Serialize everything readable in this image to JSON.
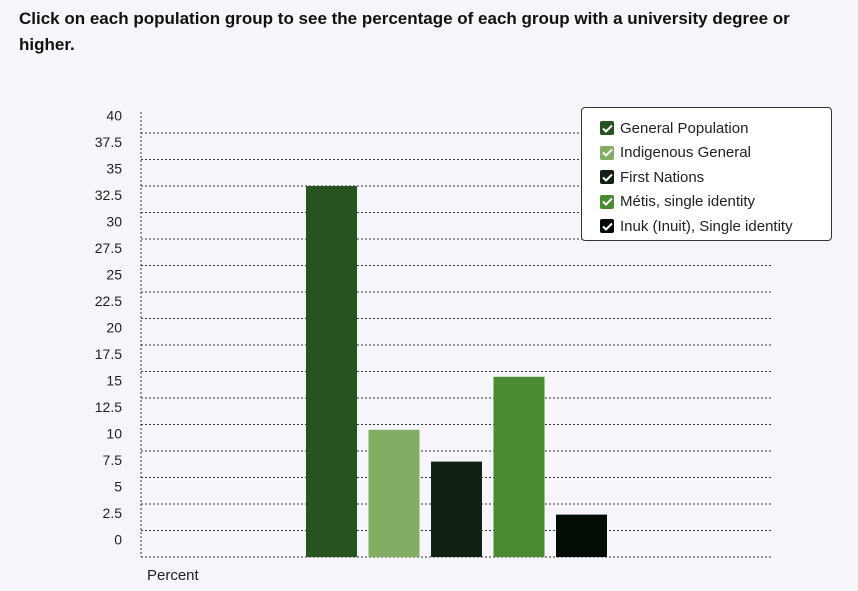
{
  "instruction": "Click on each population group to see the percentage of each group with a university degree or higher.",
  "chart_data": {
    "type": "bar",
    "title": "Click on each population group to see the percentage of each group with a university degree or higher.",
    "xlabel": "Percent",
    "ylabel": "",
    "ylim": [
      0,
      40
    ],
    "yticks": [
      "0",
      "2.5",
      "5",
      "7.5",
      "10",
      "12.5",
      "15",
      "17.5",
      "20",
      "22.5",
      "25",
      "27.5",
      "30",
      "32.5",
      "35",
      "37.5",
      "40"
    ],
    "grid": true,
    "legend_position": "top-right",
    "categories": [
      "General Population",
      "Indigenous General",
      "First Nations",
      "Métis, single identity",
      "Inuk (Inuit), Single identity"
    ],
    "values": [
      35,
      12,
      9,
      17,
      4
    ],
    "colors": [
      "#27531f",
      "#82ad62",
      "#132114",
      "#4a8a33",
      "#020c05"
    ]
  }
}
